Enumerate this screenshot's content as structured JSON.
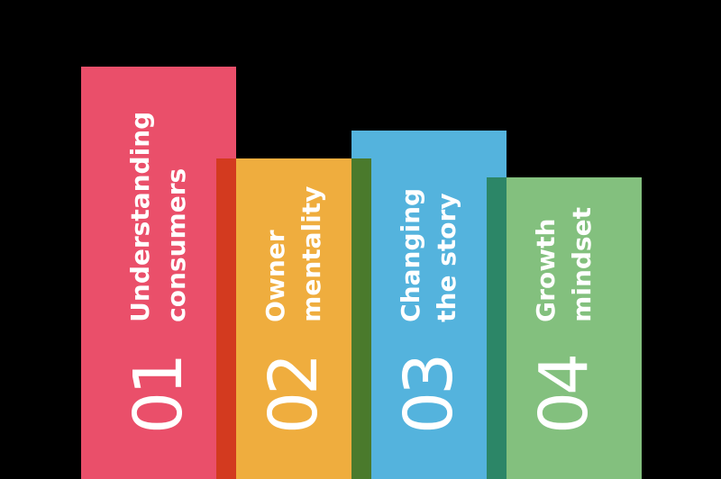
{
  "background_color": "#000000",
  "text_color": "#FFFFFF",
  "steps": [
    {
      "number": "01",
      "label_lines": [
        "Understanding",
        "consumers"
      ],
      "bar_color": "#EA4F6A"
    },
    {
      "number": "02",
      "label_lines": [
        "Owner",
        "mentality"
      ],
      "bar_color": "#EFAD3E"
    },
    {
      "number": "03",
      "label_lines": [
        "Changing",
        "the story"
      ],
      "bar_color": "#54B3DD"
    },
    {
      "number": "04",
      "label_lines": [
        "Growth",
        "mindset"
      ],
      "bar_color": "#83C07E"
    }
  ],
  "overlap_shadows": [
    {
      "between": "01-02",
      "color": "#D33A1F"
    },
    {
      "between": "02-03",
      "color": "#4A7A2C"
    },
    {
      "between": "03-04",
      "color": "#2C8667"
    }
  ]
}
